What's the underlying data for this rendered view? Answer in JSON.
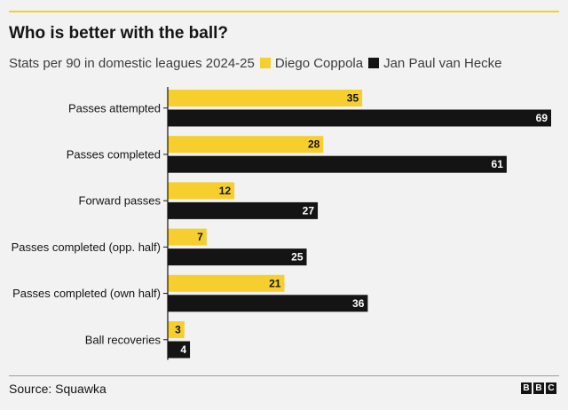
{
  "title": "Who is better with the ball?",
  "subtitle": "Stats per 90 in domestic leagues 2024-25",
  "source": "Source: Squawka",
  "logo": [
    "B",
    "B",
    "C"
  ],
  "colors": {
    "accent": "#f6cf2f",
    "series1": "#f6cf2f",
    "series2": "#141414"
  },
  "chart_data": {
    "type": "bar",
    "orientation": "horizontal",
    "categories": [
      "Passes attempted",
      "Passes completed",
      "Forward passes",
      "Passes completed (opp. half)",
      "Passes completed (own half)",
      "Ball recoveries"
    ],
    "series": [
      {
        "name": "Diego Coppola",
        "color": "#f6cf2f",
        "values": [
          35,
          28,
          12,
          7,
          21,
          3
        ]
      },
      {
        "name": "Jan Paul van Hecke",
        "color": "#141414",
        "values": [
          69,
          61,
          27,
          25,
          36,
          4
        ]
      }
    ],
    "xlim": [
      0,
      69
    ],
    "grid": false,
    "legend_position": "top"
  }
}
